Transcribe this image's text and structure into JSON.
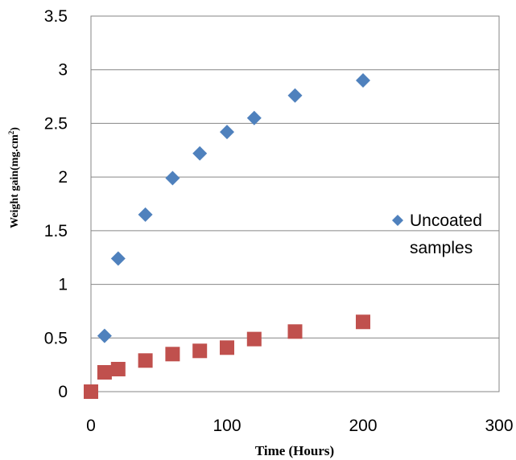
{
  "chart_data": {
    "type": "scatter",
    "title": "",
    "xlabel": "Time (Hours)",
    "ylabel": "Weight gain(mg.cm",
    "ylabel_sup": "2",
    "ylabel_close": ")",
    "xlim": [
      0,
      300
    ],
    "ylim": [
      0,
      3.5
    ],
    "xticks": [
      0,
      100,
      200,
      300
    ],
    "xtick_labels": [
      "0",
      "100",
      "200",
      "300"
    ],
    "yticks": [
      0,
      0.5,
      1,
      1.5,
      2,
      2.5,
      3,
      3.5
    ],
    "ytick_labels": [
      "0",
      "0.5",
      "1",
      "1.5",
      "2",
      "2.5",
      "3",
      "3.5"
    ],
    "grid": "horizontal",
    "legend_position": "right",
    "series": [
      {
        "name": "Uncoated samples",
        "legend_lines": [
          "Uncoated",
          "samples"
        ],
        "marker": "diamond",
        "color": "#4F81BD",
        "x": [
          10,
          20,
          40,
          60,
          80,
          100,
          120,
          150,
          200
        ],
        "y": [
          0.52,
          1.24,
          1.65,
          1.99,
          2.22,
          2.42,
          2.55,
          2.76,
          2.9
        ]
      },
      {
        "marker": "square",
        "color": "#C0504D",
        "x": [
          0,
          10,
          20,
          40,
          60,
          80,
          100,
          120,
          150,
          200
        ],
        "y": [
          0,
          0.18,
          0.21,
          0.29,
          0.35,
          0.38,
          0.41,
          0.49,
          0.56,
          0.65
        ]
      }
    ]
  }
}
